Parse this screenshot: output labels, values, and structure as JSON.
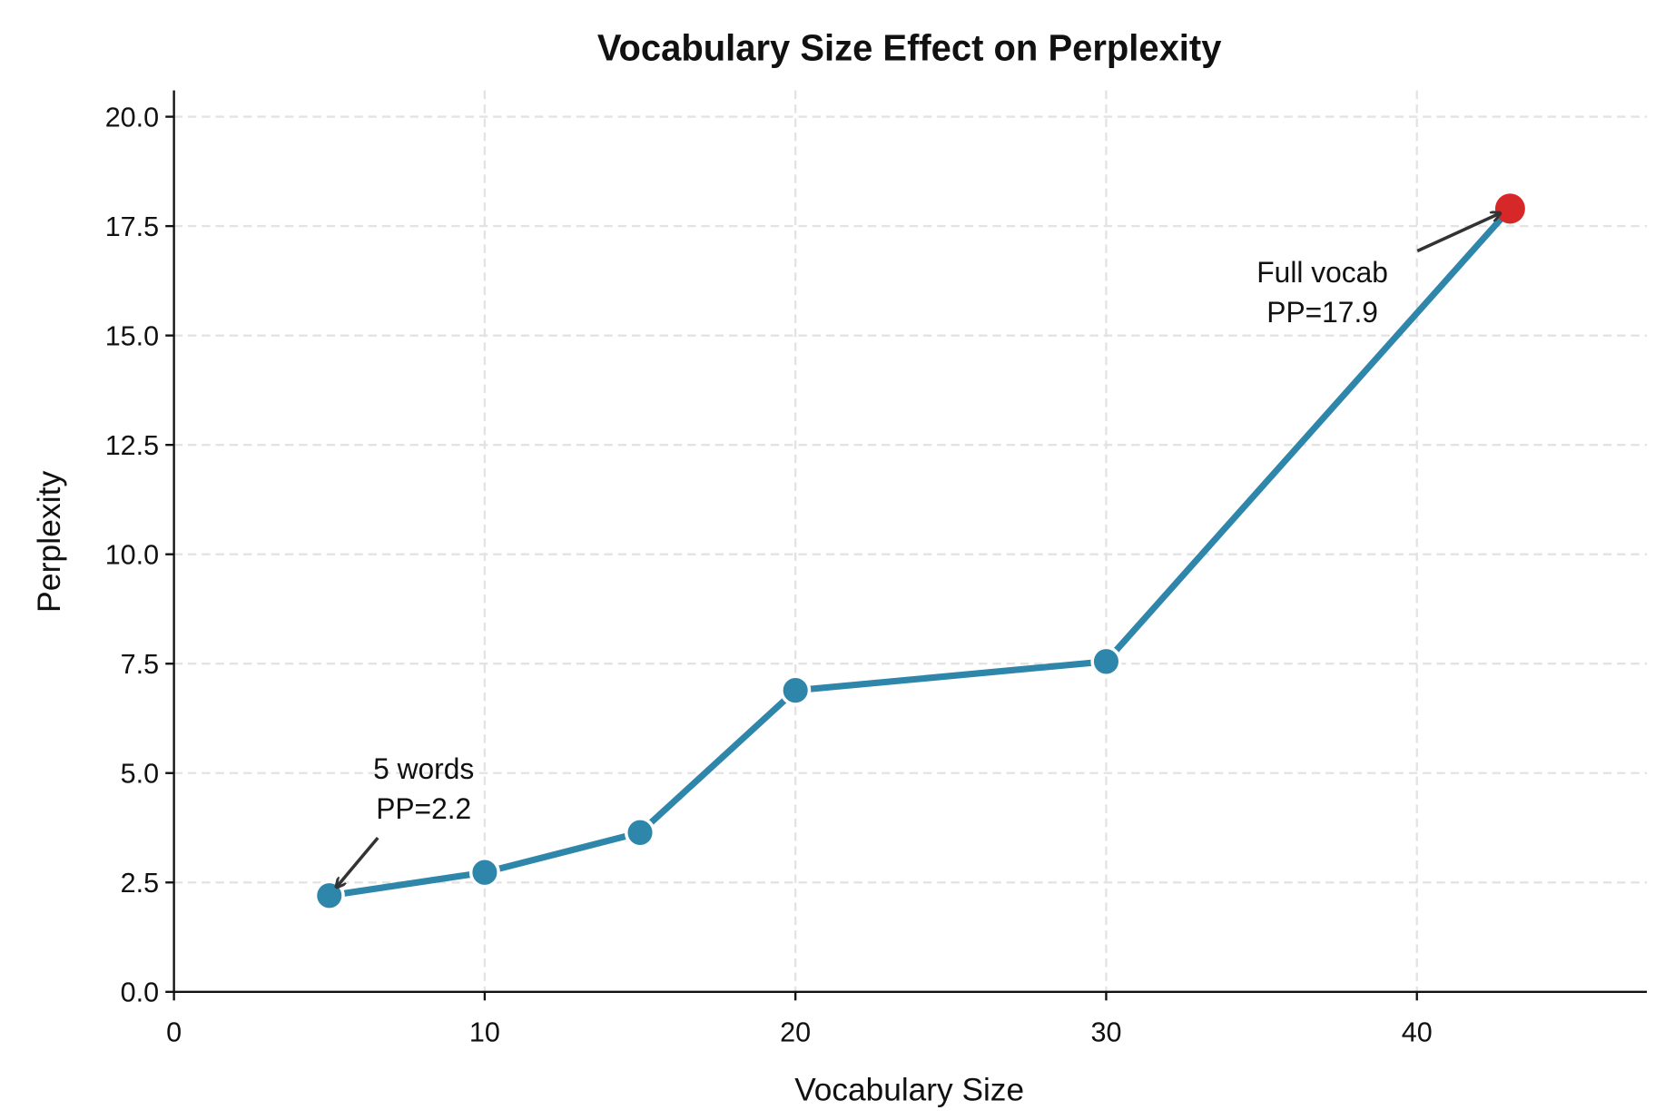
{
  "chart_data": {
    "type": "line",
    "title": "Vocabulary Size Effect on Perplexity",
    "xlabel": "Vocabulary Size",
    "ylabel": "Perplexity",
    "xlim": [
      0,
      47.4
    ],
    "ylim": [
      0,
      20.6
    ],
    "grid": true,
    "x": [
      5,
      10,
      15,
      20,
      30,
      43
    ],
    "y": [
      2.2,
      2.73,
      3.64,
      6.89,
      7.55,
      17.9
    ],
    "xticks": [
      "0",
      "10",
      "20",
      "30",
      "40"
    ],
    "xtick_values": [
      0,
      10,
      20,
      30,
      40
    ],
    "yticks": [
      "0.0",
      "2.5",
      "5.0",
      "7.5",
      "10.0",
      "12.5",
      "15.0",
      "17.5",
      "20.0"
    ],
    "ytick_values": [
      0,
      2.5,
      5,
      7.5,
      10,
      12.5,
      15,
      17.5,
      20
    ],
    "colors": {
      "line": "#2e86ab",
      "highlight": "#d62828",
      "arrow": "#333333"
    },
    "annotations": [
      {
        "lines": [
          "5 words",
          "PP=2.2"
        ],
        "point": [
          5,
          2.2
        ]
      },
      {
        "lines": [
          "Full vocab",
          "PP=17.9"
        ],
        "point": [
          43,
          17.9
        ]
      }
    ]
  }
}
